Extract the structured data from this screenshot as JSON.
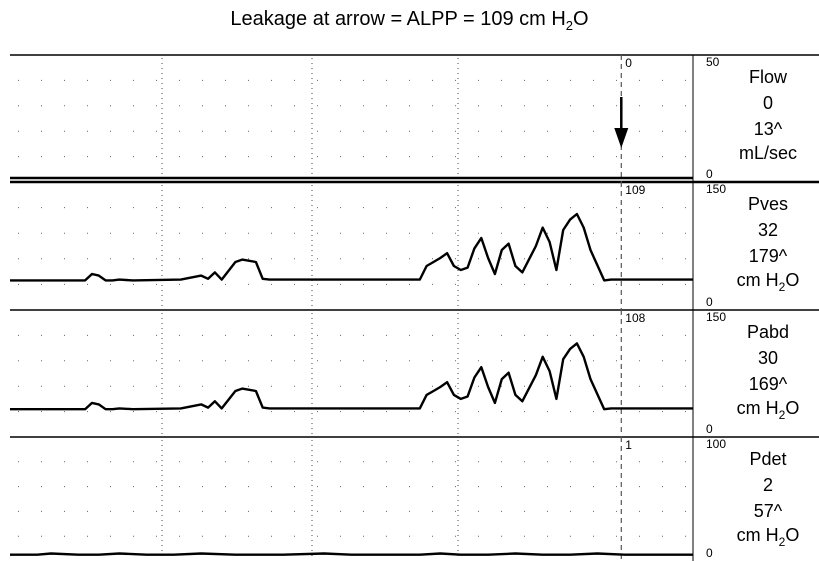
{
  "title": {
    "prefix": "Leakage at arrow = ALPP = 109 cm H",
    "sub": "2",
    "suffix": "O"
  },
  "chart_data": [
    {
      "type": "line",
      "channel": "Flow",
      "current_value": "0",
      "peak_value": "13^",
      "unit": {
        "prefix": "mL/sec",
        "sub": "",
        "suffix": ""
      },
      "scale_min": "0",
      "scale_max": "50",
      "event_value": "0",
      "ylim": [
        0,
        50
      ],
      "x": [
        0,
        100
      ],
      "y": [
        0,
        0
      ]
    },
    {
      "type": "line",
      "channel": "Pves",
      "current_value": "32",
      "peak_value": "179^",
      "unit": {
        "prefix": "cm H",
        "sub": "2",
        "suffix": "O"
      },
      "scale_min": "0",
      "scale_max": "150",
      "event_value": "109",
      "ylim": [
        0,
        150
      ],
      "x": [
        0,
        11,
        12,
        13,
        14,
        15,
        16,
        18,
        25,
        28,
        29,
        30,
        31,
        33,
        34,
        36,
        37,
        38,
        39,
        40,
        42,
        44,
        60,
        61,
        62,
        63,
        64,
        65,
        66,
        67,
        68,
        69,
        70,
        71,
        72,
        73,
        74,
        75,
        77,
        78,
        79,
        80,
        81,
        82,
        83,
        84,
        85,
        87,
        88,
        89,
        100
      ],
      "y": [
        32,
        32,
        40,
        38,
        32,
        32,
        33,
        32,
        33,
        38,
        34,
        42,
        33,
        55,
        58,
        55,
        34,
        33,
        33,
        33,
        33,
        33,
        33,
        50,
        55,
        60,
        66,
        50,
        45,
        48,
        72,
        85,
        60,
        40,
        70,
        78,
        50,
        42,
        75,
        98,
        80,
        45,
        95,
        108,
        115,
        98,
        70,
        32,
        33,
        33,
        33
      ]
    },
    {
      "type": "line",
      "channel": "Pabd",
      "current_value": "30",
      "peak_value": "169^",
      "unit": {
        "prefix": "cm H",
        "sub": "2",
        "suffix": "O"
      },
      "scale_min": "0",
      "scale_max": "150",
      "event_value": "108",
      "ylim": [
        0,
        150
      ],
      "x": [
        0,
        11,
        12,
        13,
        14,
        15,
        16,
        18,
        25,
        28,
        29,
        30,
        31,
        33,
        34,
        36,
        37,
        38,
        39,
        40,
        42,
        44,
        60,
        61,
        62,
        63,
        64,
        65,
        66,
        67,
        68,
        69,
        70,
        71,
        72,
        73,
        74,
        75,
        77,
        78,
        79,
        80,
        81,
        82,
        83,
        84,
        85,
        87,
        88,
        89,
        100
      ],
      "y": [
        30,
        30,
        38,
        36,
        30,
        30,
        31,
        30,
        31,
        36,
        32,
        40,
        31,
        53,
        56,
        53,
        32,
        31,
        31,
        31,
        31,
        31,
        31,
        48,
        53,
        58,
        64,
        48,
        43,
        46,
        70,
        83,
        58,
        38,
        68,
        76,
        48,
        40,
        73,
        96,
        78,
        43,
        93,
        106,
        113,
        96,
        68,
        30,
        31,
        31,
        31
      ]
    },
    {
      "type": "line",
      "channel": "Pdet",
      "current_value": "2",
      "peak_value": "57^",
      "unit": {
        "prefix": "cm H",
        "sub": "2",
        "suffix": "O"
      },
      "scale_min": "0",
      "scale_max": "100",
      "event_value": "1",
      "ylim": [
        0,
        100
      ],
      "x": [
        0,
        4,
        6,
        10,
        13,
        16,
        20,
        24,
        28,
        33,
        36,
        40,
        46,
        50,
        56,
        60,
        63,
        66,
        70,
        74,
        78,
        82,
        86,
        90,
        94,
        100
      ],
      "y": [
        2,
        2,
        3,
        2,
        2,
        3,
        2,
        2,
        3,
        2,
        2,
        2,
        3,
        2,
        2,
        2,
        3,
        2,
        2,
        3,
        2,
        2,
        3,
        2,
        2,
        2
      ]
    }
  ]
}
